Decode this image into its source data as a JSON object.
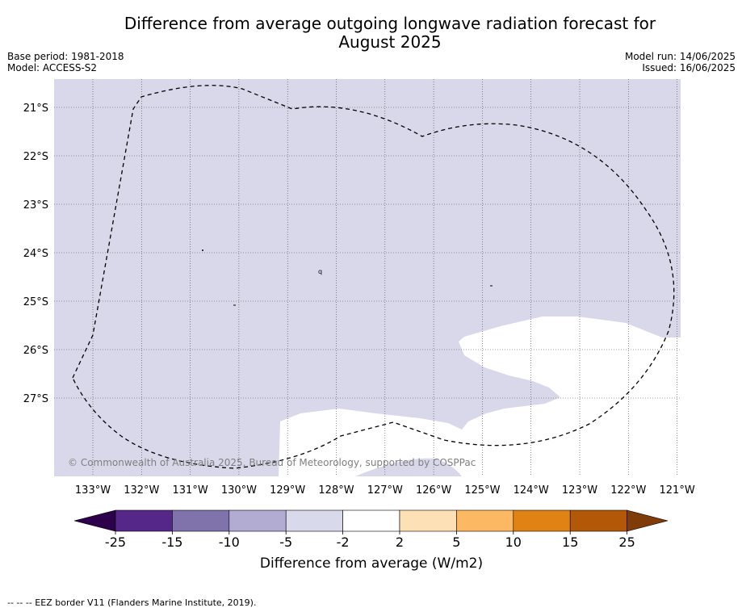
{
  "title": {
    "line1": "Difference from average outgoing longwave radiation forecast for",
    "line2": "August 2025"
  },
  "meta": {
    "base_period": "Base period: 1981-2018",
    "model": "Model: ACCESS-S2",
    "model_run": "Model run: 14/06/2025",
    "issued": "Issued: 16/06/2025"
  },
  "map": {
    "lat_labels": [
      "21°S",
      "22°S",
      "23°S",
      "24°S",
      "25°S",
      "26°S",
      "27°S"
    ],
    "lon_labels": [
      "133°W",
      "132°W",
      "131°W",
      "130°W",
      "129°W",
      "128°W",
      "127°W",
      "126°W",
      "125°W",
      "124°W",
      "123°W",
      "122°W",
      "121°W"
    ],
    "copyright": "© Commonwealth of Australia 2025, Bureau of Meteorology, supported by COSPPac",
    "region_colors": {
      "background": "#d8d8ea",
      "neutral": "#ffffff"
    }
  },
  "colorbar": {
    "ticks": [
      "-25",
      "-15",
      "-10",
      "-5",
      "-2",
      "2",
      "5",
      "10",
      "15",
      "25"
    ],
    "colors": [
      "#2d004b",
      "#542788",
      "#8073ac",
      "#b2abd2",
      "#d8daeb",
      "#ffffff",
      "#fee0b6",
      "#fdb863",
      "#e08214",
      "#b35806",
      "#7f3b08"
    ],
    "label": "Difference from average (W/m2)"
  },
  "footer": "--  --  -- EEZ border V11 (Flanders Marine Institute, 2019)."
}
